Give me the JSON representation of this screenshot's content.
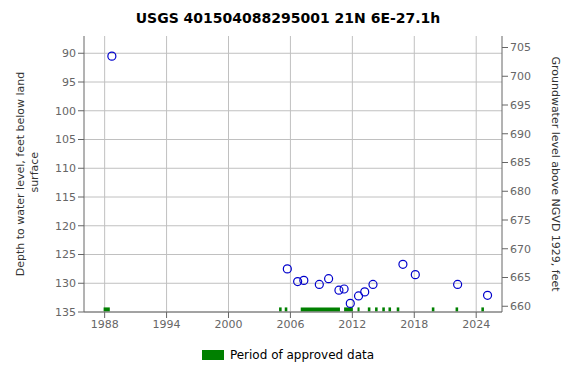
{
  "chart_data": {
    "type": "scatter",
    "title": "USGS 401504088295001 21N 6E-27.1h",
    "y_label": "Depth to water level, feet below land\n surface",
    "y2_label": "Groundwater level above NGVD 1929, feet",
    "xlim": [
      1986,
      2026.5
    ],
    "xticks": [
      1988,
      1994,
      2000,
      2006,
      2012,
      2018,
      2024
    ],
    "ylim": [
      135,
      87
    ],
    "yticks": [
      90,
      95,
      100,
      105,
      110,
      115,
      120,
      125,
      130,
      135
    ],
    "y2lim": [
      659,
      707
    ],
    "y2ticks": [
      705,
      700,
      695,
      690,
      685,
      680,
      675,
      670,
      665,
      660
    ],
    "grid": true,
    "legend": "bottom",
    "series": [
      {
        "type": "scatter",
        "marker": "circle",
        "color": "#0000cc",
        "x": [
          1988.7,
          2005.7,
          2006.7,
          2007.3,
          2008.8,
          2009.7,
          2010.7,
          2011.2,
          2011.8,
          2012.6,
          2013.2,
          2014.0,
          2016.9,
          2018.1,
          2022.2,
          2025.1
        ],
        "values": [
          90.5,
          127.5,
          129.7,
          129.5,
          130.2,
          129.2,
          131.2,
          131.0,
          133.5,
          132.2,
          131.5,
          130.2,
          126.7,
          128.5,
          130.2,
          132.1
        ]
      },
      {
        "type": "segments",
        "name": "Period of approved data",
        "color": "#008000",
        "y": 134.55,
        "segments": [
          [
            1987.9,
            1988.5
          ],
          [
            2004.9,
            2005.15
          ],
          [
            2005.45,
            2005.7
          ],
          [
            2007.0,
            2010.8
          ],
          [
            2011.2,
            2012.05
          ],
          [
            2012.5,
            2012.7
          ],
          [
            2013.5,
            2013.75
          ],
          [
            2014.2,
            2014.45
          ],
          [
            2014.9,
            2015.15
          ],
          [
            2015.5,
            2015.75
          ],
          [
            2016.3,
            2016.55
          ],
          [
            2019.7,
            2019.95
          ],
          [
            2022.0,
            2022.25
          ],
          [
            2024.5,
            2024.75
          ]
        ]
      }
    ]
  }
}
